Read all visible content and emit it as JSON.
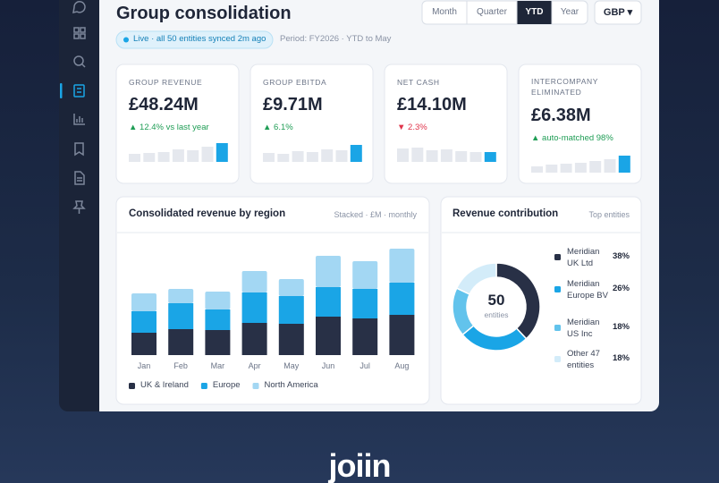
{
  "brand": "joiin",
  "header": {
    "title": "Group consolidation",
    "periods": [
      "Month",
      "Quarter",
      "YTD",
      "Year"
    ],
    "active_period": "YTD",
    "currency": "GBP ▾",
    "status": "Live · all 50 entities synced 2m ago",
    "period_note": "Period: FY2026 · YTD to May"
  },
  "kpis": [
    {
      "label": "GROUP REVENUE",
      "value": "£48.24M",
      "delta": "▲ 12.4% vs last year",
      "trend": "up",
      "sparkline": [
        9,
        10,
        11,
        14,
        13,
        17,
        21
      ]
    },
    {
      "label": "GROUP EBITDA",
      "value": "£9.71M",
      "delta": "▲ 6.1%",
      "trend": "up",
      "sparkline": [
        10,
        9,
        12,
        11,
        14,
        13,
        19
      ]
    },
    {
      "label": "NET CASH",
      "value": "£14.10M",
      "delta": "▼ 2.3%",
      "trend": "down",
      "sparkline": [
        15,
        16,
        13,
        14,
        12,
        11,
        11
      ]
    },
    {
      "label": "INTERCOMPANY ELIMINATED",
      "value": "£6.38M",
      "delta": "▲ auto-matched 98%",
      "trend": "up",
      "sparkline": [
        7,
        9,
        10,
        11,
        13,
        15,
        19
      ]
    }
  ],
  "chart_data": [
    {
      "type": "bar",
      "stacked": true,
      "title": "Consolidated revenue by region",
      "subtitle": "Stacked · £M · monthly",
      "categories": [
        "Jan",
        "Feb",
        "Mar",
        "Apr",
        "May",
        "Jun",
        "Jul",
        "Aug"
      ],
      "series": [
        {
          "name": "UK & Ireland",
          "color": "#283046",
          "values": [
            2.5,
            2.9,
            2.8,
            3.6,
            3.5,
            4.3,
            4.1,
            4.5
          ]
        },
        {
          "name": "Europe",
          "color": "#1aa5e6",
          "values": [
            2.4,
            2.9,
            2.3,
            3.4,
            3.1,
            3.3,
            3.3,
            3.6
          ]
        },
        {
          "name": "North America",
          "color": "#a3d7f3",
          "values": [
            2.0,
            1.6,
            2.0,
            2.4,
            1.9,
            3.5,
            3.1,
            3.8
          ]
        }
      ],
      "ylim": [
        0,
        12
      ]
    },
    {
      "type": "pie",
      "donut": true,
      "title": "Revenue contribution",
      "subtitle": "Top entities",
      "center_value": 50,
      "center_label": "entities",
      "categories": [
        "Meridian UK Ltd",
        "Meridian Europe BV",
        "Meridian US Inc",
        "Other 47 entities"
      ],
      "values": [
        38,
        26,
        18,
        18
      ],
      "value_labels": [
        "38%",
        "26%",
        "18%",
        "18%"
      ],
      "colors": [
        "#283046",
        "#1aa5e6",
        "#62c3ec",
        "#d3ecf9"
      ]
    }
  ]
}
